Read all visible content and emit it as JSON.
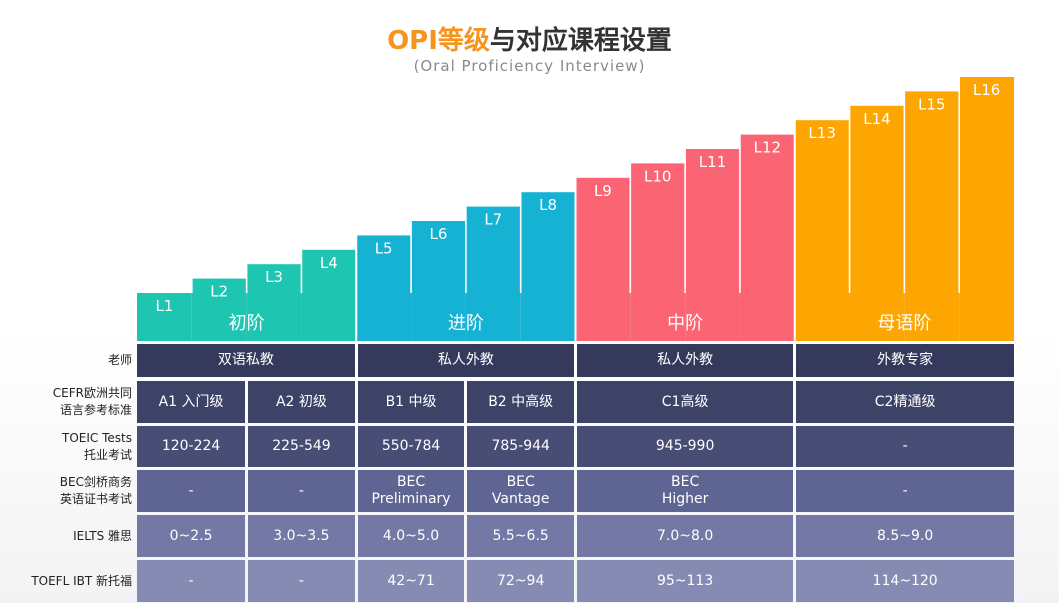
{
  "header": {
    "title_accent": "OPI等级",
    "title_rest": "与对应课程设置",
    "subtitle": "(Oral Proficiency Interview)"
  },
  "chart_data": {
    "type": "bar",
    "title": "OPI等级与对应课程设置",
    "subtitle": "(Oral Proficiency Interview)",
    "categories": [
      "L1",
      "L2",
      "L3",
      "L4",
      "L5",
      "L6",
      "L7",
      "L8",
      "L9",
      "L10",
      "L11",
      "L12",
      "L13",
      "L14",
      "L15",
      "L16"
    ],
    "values": [
      1,
      2,
      3,
      4,
      5,
      6,
      7,
      8,
      9,
      10,
      11,
      12,
      13,
      14,
      15,
      16
    ],
    "ylim": [
      0,
      16
    ],
    "xlabel": "",
    "ylabel": "",
    "groups": [
      {
        "name": "初阶",
        "levels": [
          "L1",
          "L2",
          "L3",
          "L4"
        ],
        "color": "#1ec6b1"
      },
      {
        "name": "进阶",
        "levels": [
          "L5",
          "L6",
          "L7",
          "L8"
        ],
        "color": "#16b2d4"
      },
      {
        "name": "中阶",
        "levels": [
          "L9",
          "L10",
          "L11",
          "L12"
        ],
        "color": "#fa6473"
      },
      {
        "name": "母语阶",
        "levels": [
          "L13",
          "L14",
          "L15",
          "L16"
        ],
        "color": "#fda500"
      }
    ]
  },
  "table": {
    "rows": [
      {
        "label": [
          "老师"
        ],
        "color": "#353a5c",
        "cells": [
          {
            "text": [
              "双语私教"
            ],
            "span": 2
          },
          {
            "text": [
              "私人外教"
            ],
            "span": 2
          },
          {
            "text": [
              "私人外教"
            ],
            "span": 2
          },
          {
            "text": [
              "外教专家"
            ],
            "span": 2
          }
        ]
      },
      {
        "label": [
          "CEFR欧洲共同",
          "语言参考标准"
        ],
        "color": "#3d4267",
        "cells": [
          {
            "text": [
              "A1 入门级"
            ],
            "span": 1
          },
          {
            "text": [
              "A2 初级"
            ],
            "span": 1
          },
          {
            "text": [
              "B1 中级"
            ],
            "span": 1
          },
          {
            "text": [
              "B2 中高级"
            ],
            "span": 1
          },
          {
            "text": [
              "C1高级"
            ],
            "span": 2
          },
          {
            "text": [
              "C2精通级"
            ],
            "span": 2
          }
        ]
      },
      {
        "label": [
          "TOEIC Tests",
          "托业考试"
        ],
        "color": "#474d74",
        "cells": [
          {
            "text": [
              "120-224"
            ],
            "span": 1
          },
          {
            "text": [
              "225-549"
            ],
            "span": 1
          },
          {
            "text": [
              "550-784"
            ],
            "span": 1
          },
          {
            "text": [
              "785-944"
            ],
            "span": 1
          },
          {
            "text": [
              "945-990"
            ],
            "span": 2
          },
          {
            "text": [
              "-"
            ],
            "span": 2
          }
        ]
      },
      {
        "label": [
          "BEC剑桥商务",
          "英语证书考试"
        ],
        "color": "#5f6592",
        "cells": [
          {
            "text": [
              "-"
            ],
            "span": 1
          },
          {
            "text": [
              "-"
            ],
            "span": 1
          },
          {
            "text": [
              "BEC",
              "Preliminary"
            ],
            "span": 1
          },
          {
            "text": [
              "BEC",
              "Vantage"
            ],
            "span": 1
          },
          {
            "text": [
              "BEC",
              "Higher"
            ],
            "span": 2
          },
          {
            "text": [
              "-"
            ],
            "span": 2
          }
        ]
      },
      {
        "label": [
          "IELTS 雅思"
        ],
        "color": "#7379a4",
        "cells": [
          {
            "text": [
              "0~2.5"
            ],
            "span": 1
          },
          {
            "text": [
              "3.0~3.5"
            ],
            "span": 1
          },
          {
            "text": [
              "4.0~5.0"
            ],
            "span": 1
          },
          {
            "text": [
              "5.5~6.5"
            ],
            "span": 1
          },
          {
            "text": [
              "7.0~8.0"
            ],
            "span": 2
          },
          {
            "text": [
              "8.5~9.0"
            ],
            "span": 2
          }
        ]
      },
      {
        "label": [
          "TOEFL IBT 新托福"
        ],
        "color": "#868bb4",
        "cells": [
          {
            "text": [
              "-"
            ],
            "span": 1
          },
          {
            "text": [
              "-"
            ],
            "span": 1
          },
          {
            "text": [
              "42~71"
            ],
            "span": 1
          },
          {
            "text": [
              "72~94"
            ],
            "span": 1
          },
          {
            "text": [
              "95~113"
            ],
            "span": 2
          },
          {
            "text": [
              "114~120"
            ],
            "span": 2
          }
        ]
      }
    ]
  }
}
